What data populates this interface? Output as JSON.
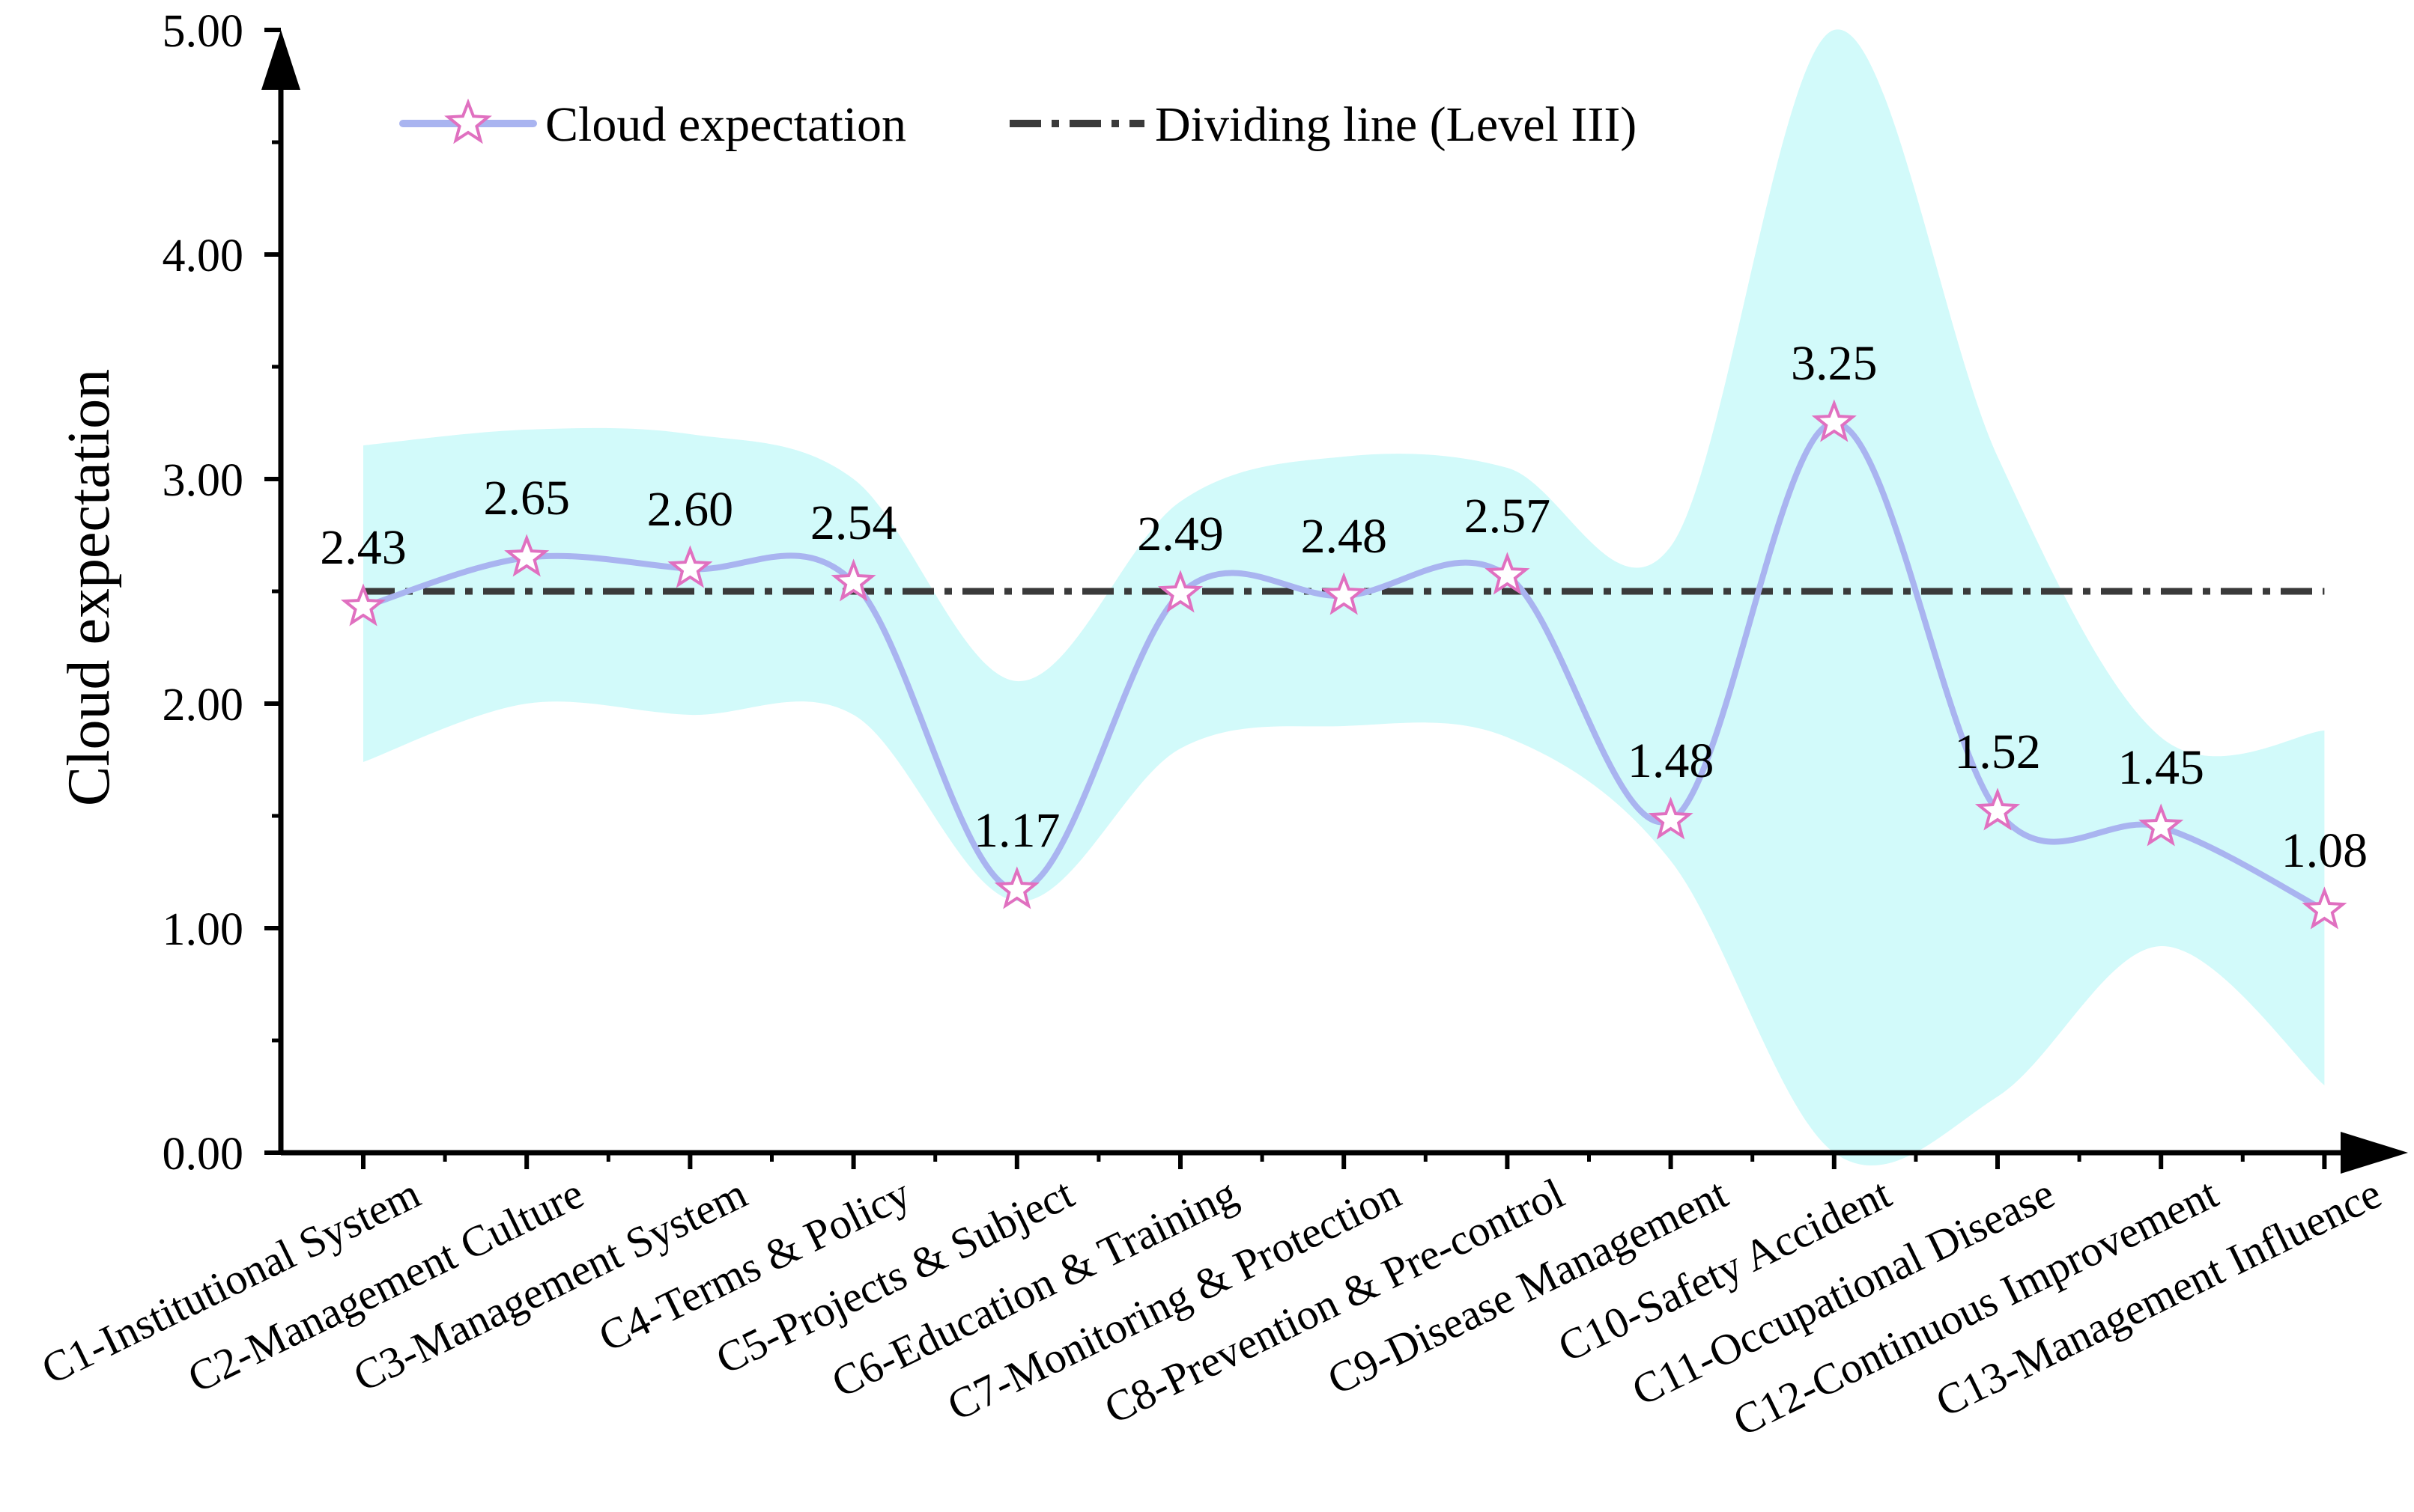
{
  "chart_data": {
    "type": "line",
    "title": "",
    "xlabel": "",
    "ylabel": "Cloud expectation",
    "ylim": [
      0,
      5
    ],
    "y_ticks": [
      "0.00",
      "1.00",
      "2.00",
      "3.00",
      "4.00",
      "5.00"
    ],
    "categories": [
      "C1-Institutional System",
      "C2-Management Culture",
      "C3-Management System",
      "C4-Terms & Policy",
      "C5-Projects & Subject",
      "C6-Education & Training",
      "C7-Monitoring & Protection",
      "C8-Prevention & Pre-control",
      "C9-Disease Management",
      "C10-Safety Accident",
      "C11-Occupational Disease",
      "C12-Continuous Improvement",
      "C13-Management Influence"
    ],
    "series": [
      {
        "name": "Cloud expectation",
        "values": [
          2.43,
          2.65,
          2.6,
          2.54,
          1.17,
          2.49,
          2.48,
          2.57,
          1.48,
          3.25,
          1.52,
          1.45,
          1.08
        ],
        "labels": [
          "2.43",
          "2.65",
          "2.60",
          "2.54",
          "1.17",
          "2.49",
          "2.48",
          "2.57",
          "1.48",
          "3.25",
          "1.52",
          "1.45",
          "1.08"
        ],
        "line_color": "#a9b4f0",
        "marker": "star",
        "marker_color": "#e070c0"
      },
      {
        "name": "Dividing line (Level III)",
        "value": 2.5,
        "style": "dash-dot",
        "color": "#3a3a3a"
      }
    ],
    "band": {
      "upper": [
        3.15,
        3.22,
        3.2,
        3.0,
        2.1,
        2.9,
        3.1,
        3.05,
        2.7,
        5.0,
        3.1,
        1.85,
        1.88
      ],
      "lower": [
        1.74,
        2.0,
        1.95,
        1.95,
        1.12,
        1.8,
        1.9,
        1.85,
        1.3,
        0.0,
        0.25,
        0.92,
        0.3
      ],
      "color": "#d2fafa"
    },
    "legend": {
      "position": "top-left",
      "items": [
        "Cloud expectation",
        "Dividing line (Level III)"
      ]
    }
  }
}
